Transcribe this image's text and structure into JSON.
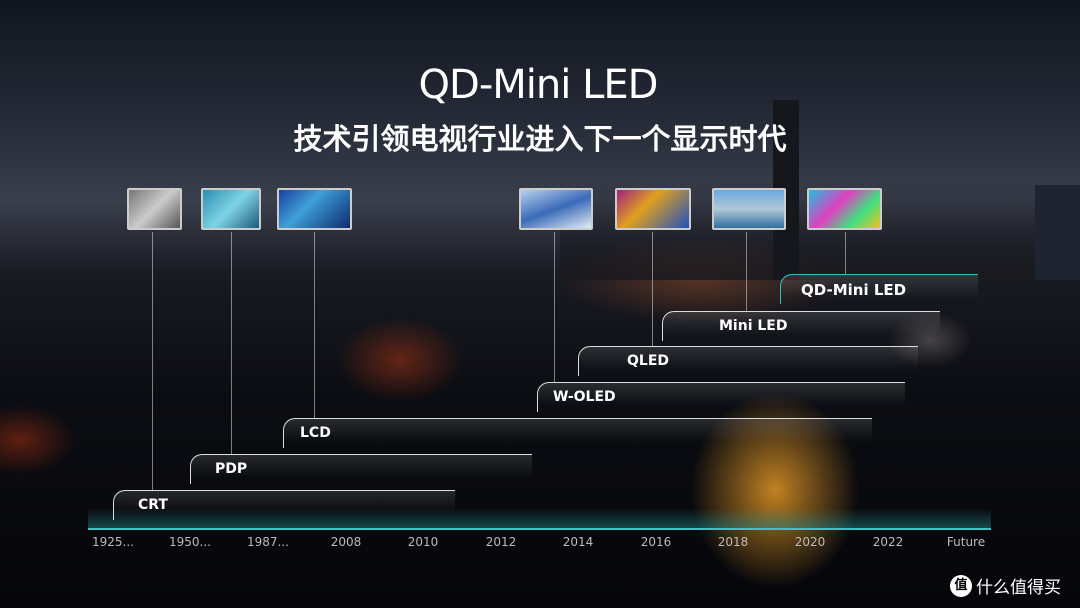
{
  "header": {
    "logo": "QD-Mini LED",
    "subtitle": "技术引领电视行业进入下一个显示时代"
  },
  "technologies": [
    {
      "label": "CRT",
      "color": "#dddddd"
    },
    {
      "label": "PDP",
      "color": "#dddddd"
    },
    {
      "label": "LCD",
      "color": "#dddddd"
    },
    {
      "label": "W-OLED",
      "color": "#dddddd"
    },
    {
      "label": "QLED",
      "color": "#dddddd"
    },
    {
      "label": "Mini LED",
      "color": "#dddddd"
    },
    {
      "label": "QD-Mini LED",
      "color": "#2fc1c6"
    }
  ],
  "timeline": [
    "1925...",
    "1950...",
    "1987...",
    "2008",
    "2010",
    "2012",
    "2014",
    "2016",
    "2018",
    "2020",
    "2022",
    "Future"
  ],
  "watermark": {
    "icon": "值",
    "text": "什么值得买"
  }
}
